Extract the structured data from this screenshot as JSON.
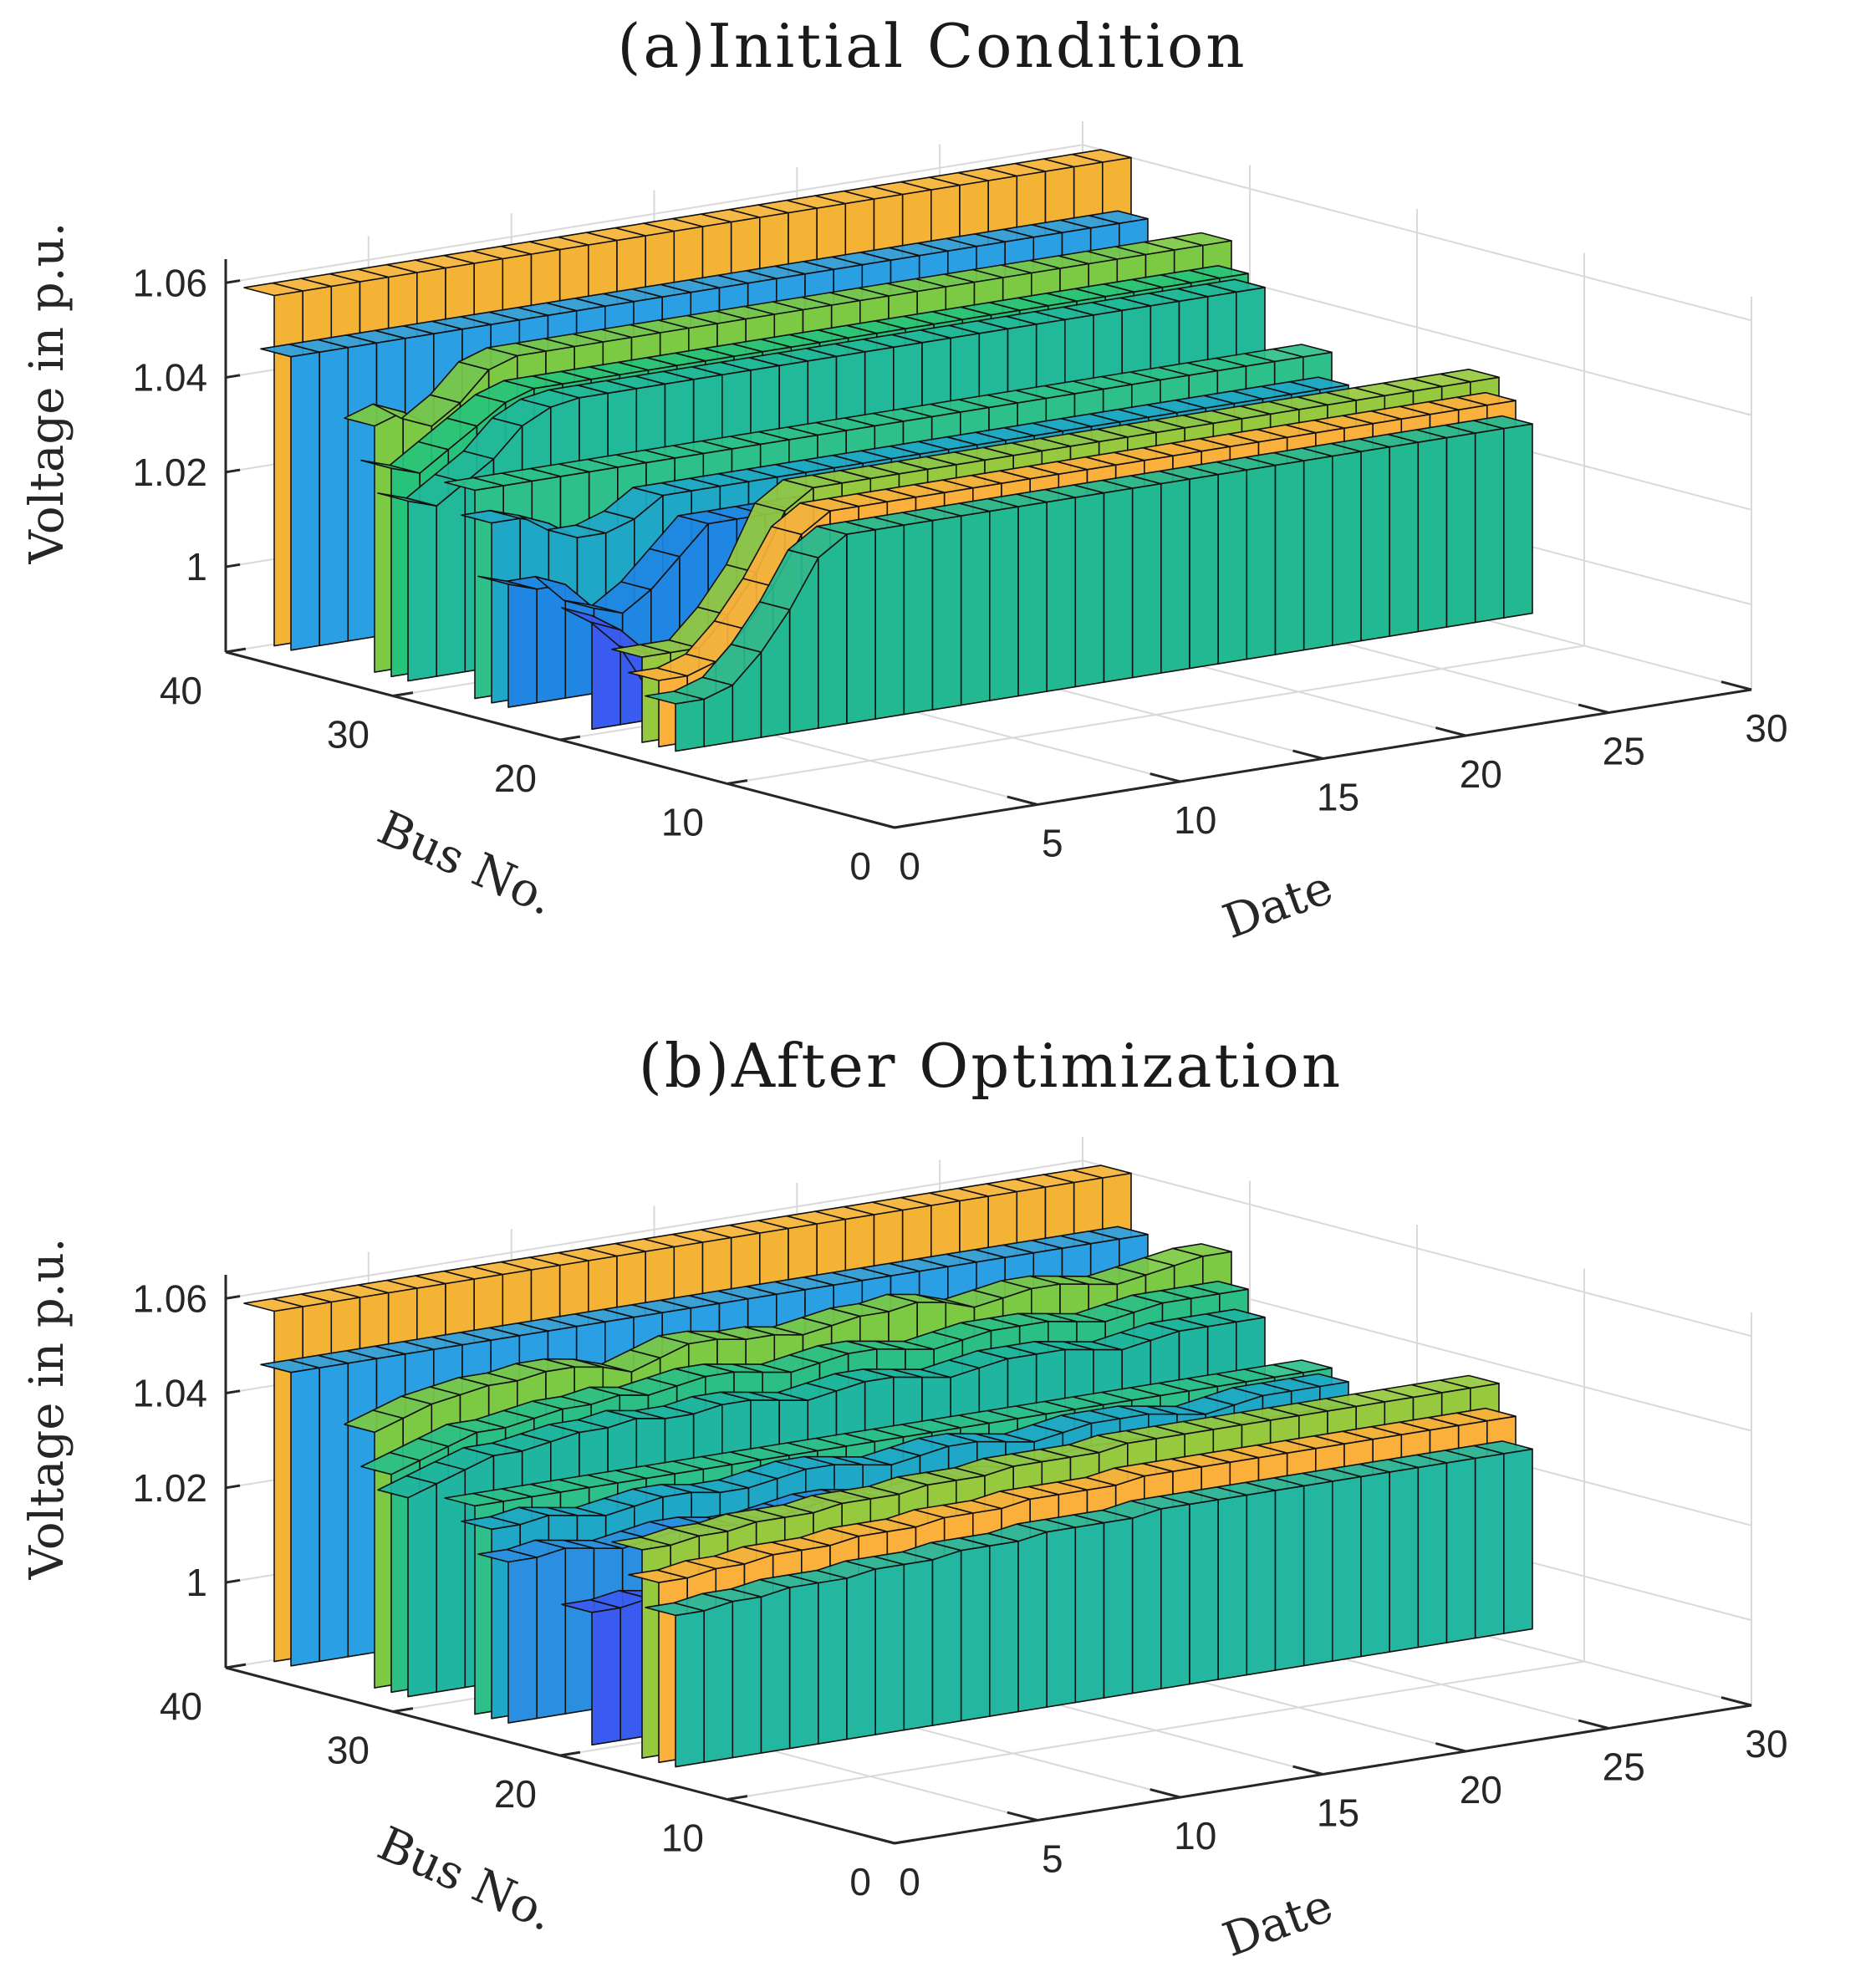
{
  "chart_data": [
    {
      "type": "surface3d",
      "title": "(a)Initial Condition",
      "xlabel": "Date",
      "ylabel": "Bus No.",
      "zlabel": "Voltage in p.u.",
      "xticks": [
        "0",
        "5",
        "10",
        "15",
        "20",
        "25",
        "30"
      ],
      "yticks": [
        "0",
        "10",
        "20",
        "30",
        "40"
      ],
      "zticks": [
        "1",
        "1.02",
        "1.04",
        "1.06"
      ],
      "xlim": [
        0,
        30
      ],
      "ylim": [
        0,
        40
      ],
      "zlim": [
        0.982,
        1.065
      ],
      "series": [
        {
          "name": "bus-38",
          "bus": 38,
          "values": [
            1.06,
            1.06,
            1.06,
            1.06,
            1.06,
            1.06,
            1.06,
            1.06,
            1.06,
            1.06,
            1.06,
            1.06,
            1.06,
            1.06,
            1.06,
            1.06,
            1.06,
            1.06,
            1.06,
            1.06,
            1.06,
            1.06,
            1.06,
            1.06,
            1.06,
            1.06,
            1.06,
            1.06,
            1.06,
            1.06
          ],
          "color": "#f5b335"
        },
        {
          "name": "bus-37",
          "bus": 37,
          "values": [
            1.048,
            1.048,
            1.048,
            1.048,
            1.048,
            1.048,
            1.048,
            1.048,
            1.048,
            1.048,
            1.048,
            1.048,
            1.048,
            1.048,
            1.048,
            1.048,
            1.048,
            1.048,
            1.048,
            1.048,
            1.048,
            1.048,
            1.048,
            1.048,
            1.048,
            1.048,
            1.048,
            1.048,
            1.048,
            1.048
          ],
          "color": "#2a9fe3"
        },
        {
          "name": "bus-32",
          "bus": 32,
          "values": [
            1.038,
            1.04,
            1.036,
            1.04,
            1.046,
            1.048,
            1.048,
            1.048,
            1.048,
            1.048,
            1.048,
            1.048,
            1.048,
            1.048,
            1.048,
            1.048,
            1.048,
            1.048,
            1.048,
            1.048,
            1.048,
            1.048,
            1.048,
            1.048,
            1.048,
            1.048,
            1.048,
            1.048,
            1.048,
            1.048
          ],
          "color": "#7cc943"
        },
        {
          "name": "bus-31",
          "bus": 31,
          "values": [
            1.03,
            1.028,
            1.032,
            1.036,
            1.04,
            1.042,
            1.042,
            1.042,
            1.042,
            1.042,
            1.042,
            1.042,
            1.042,
            1.042,
            1.042,
            1.042,
            1.042,
            1.042,
            1.042,
            1.042,
            1.042,
            1.042,
            1.042,
            1.042,
            1.042,
            1.042,
            1.042,
            1.042,
            1.042,
            1.042
          ],
          "color": "#27c37a"
        },
        {
          "name": "bus-30",
          "bus": 30,
          "values": [
            1.024,
            1.022,
            1.026,
            1.03,
            1.036,
            1.039,
            1.04,
            1.04,
            1.04,
            1.04,
            1.04,
            1.04,
            1.04,
            1.04,
            1.04,
            1.04,
            1.04,
            1.04,
            1.04,
            1.04,
            1.04,
            1.04,
            1.04,
            1.04,
            1.04,
            1.04,
            1.04,
            1.04,
            1.04,
            1.04
          ],
          "color": "#22b89a"
        },
        {
          "name": "bus-26",
          "bus": 26,
          "values": [
            1.03,
            1.03,
            1.03,
            1.03,
            1.03,
            1.03,
            1.03,
            1.03,
            1.03,
            1.03,
            1.03,
            1.03,
            1.03,
            1.03,
            1.03,
            1.03,
            1.03,
            1.03,
            1.03,
            1.03,
            1.03,
            1.03,
            1.03,
            1.03,
            1.03,
            1.03,
            1.03,
            1.03,
            1.03,
            1.03
          ],
          "color": "#2ec08a"
        },
        {
          "name": "bus-25",
          "bus": 25,
          "values": [
            1.024,
            1.024,
            1.022,
            1.018,
            1.018,
            1.02,
            1.024,
            1.024,
            1.024,
            1.024,
            1.024,
            1.024,
            1.024,
            1.024,
            1.024,
            1.024,
            1.024,
            1.024,
            1.024,
            1.024,
            1.024,
            1.024,
            1.024,
            1.024,
            1.024,
            1.024,
            1.024,
            1.024,
            1.024,
            1.024
          ],
          "color": "#1fa7c8"
        },
        {
          "name": "bus-24",
          "bus": 24,
          "values": [
            1.012,
            1.01,
            1.01,
            1.004,
            1.002,
            1.006,
            1.012,
            1.018,
            1.018,
            1.018,
            1.018,
            1.018,
            1.018,
            1.018,
            1.018,
            1.018,
            1.018,
            1.018,
            1.018,
            1.018,
            1.018,
            1.018,
            1.018,
            1.018,
            1.018,
            1.018,
            1.018,
            1.018,
            1.018,
            1.018
          ],
          "color": "#1f86e3"
        },
        {
          "name": "bus-19",
          "bus": 19,
          "values": [
            1.01,
            1.006,
            1.0,
            0.99,
            0.986,
            0.99,
            1.0,
            1.008,
            1.01,
            1.01,
            1.01,
            1.01,
            1.01,
            1.01,
            1.01,
            1.01,
            1.01,
            1.01,
            1.01,
            1.01,
            1.01,
            1.01,
            1.01,
            1.01,
            1.01,
            1.01,
            1.01,
            1.01,
            1.01,
            1.01
          ],
          "color": "#3a5bf0"
        },
        {
          "name": "bus-16",
          "bus": 16,
          "values": [
            1.004,
            1.004,
            1.004,
            1.01,
            1.018,
            1.03,
            1.034,
            1.034,
            1.034,
            1.034,
            1.034,
            1.034,
            1.034,
            1.034,
            1.034,
            1.034,
            1.034,
            1.034,
            1.034,
            1.034,
            1.034,
            1.034,
            1.034,
            1.034,
            1.034,
            1.034,
            1.034,
            1.034,
            1.034,
            1.034
          ],
          "color": "#96c93e"
        },
        {
          "name": "bus-15",
          "bus": 15,
          "values": [
            1.0,
            1.0,
            1.002,
            1.008,
            1.016,
            1.026,
            1.03,
            1.03,
            1.03,
            1.03,
            1.03,
            1.03,
            1.03,
            1.03,
            1.03,
            1.03,
            1.03,
            1.03,
            1.03,
            1.03,
            1.03,
            1.03,
            1.03,
            1.03,
            1.03,
            1.03,
            1.03,
            1.03,
            1.03,
            1.03
          ],
          "color": "#fbb03b"
        },
        {
          "name": "bus-14",
          "bus": 14,
          "values": [
            0.996,
            0.996,
            0.998,
            1.004,
            1.012,
            1.022,
            1.026,
            1.026,
            1.026,
            1.026,
            1.026,
            1.026,
            1.026,
            1.026,
            1.026,
            1.026,
            1.026,
            1.026,
            1.026,
            1.026,
            1.026,
            1.026,
            1.026,
            1.026,
            1.026,
            1.026,
            1.026,
            1.026,
            1.026,
            1.026
          ],
          "color": "#22b892"
        }
      ]
    },
    {
      "type": "surface3d",
      "title": "(b)After Optimization",
      "xlabel": "Date",
      "ylabel": "Bus No.",
      "zlabel": "Voltage in p.u.",
      "xticks": [
        "0",
        "5",
        "10",
        "15",
        "20",
        "25",
        "30"
      ],
      "yticks": [
        "0",
        "10",
        "20",
        "30",
        "40"
      ],
      "zticks": [
        "1",
        "1.02",
        "1.04",
        "1.06"
      ],
      "xlim": [
        0,
        30
      ],
      "ylim": [
        0,
        40
      ],
      "zlim": [
        0.982,
        1.065
      ],
      "series": [
        {
          "name": "bus-38",
          "bus": 38,
          "values": [
            1.06,
            1.06,
            1.06,
            1.06,
            1.06,
            1.06,
            1.06,
            1.06,
            1.06,
            1.06,
            1.06,
            1.06,
            1.06,
            1.06,
            1.06,
            1.06,
            1.06,
            1.06,
            1.06,
            1.06,
            1.06,
            1.06,
            1.06,
            1.06,
            1.06,
            1.06,
            1.06,
            1.06,
            1.06,
            1.06
          ],
          "color": "#f5b335"
        },
        {
          "name": "bus-37",
          "bus": 37,
          "values": [
            1.048,
            1.048,
            1.048,
            1.048,
            1.048,
            1.048,
            1.048,
            1.048,
            1.048,
            1.048,
            1.048,
            1.048,
            1.048,
            1.048,
            1.048,
            1.048,
            1.048,
            1.048,
            1.048,
            1.048,
            1.048,
            1.048,
            1.048,
            1.048,
            1.048,
            1.048,
            1.048,
            1.048,
            1.048,
            1.048
          ],
          "color": "#2a9fe3"
        },
        {
          "name": "bus-32",
          "bus": 32,
          "values": [
            1.04,
            1.042,
            1.044,
            1.045,
            1.046,
            1.046,
            1.047,
            1.047,
            1.046,
            1.044,
            1.046,
            1.048,
            1.048,
            1.047,
            1.047,
            1.046,
            1.047,
            1.048,
            1.048,
            1.049,
            1.048,
            1.046,
            1.047,
            1.048,
            1.048,
            1.047,
            1.046,
            1.047,
            1.048,
            1.049
          ],
          "color": "#7cc943"
        },
        {
          "name": "bus-31",
          "bus": 31,
          "values": [
            1.032,
            1.034,
            1.036,
            1.038,
            1.038,
            1.039,
            1.04,
            1.04,
            1.041,
            1.04,
            1.041,
            1.042,
            1.042,
            1.041,
            1.04,
            1.041,
            1.042,
            1.042,
            1.041,
            1.04,
            1.041,
            1.042,
            1.042,
            1.042,
            1.041,
            1.04,
            1.041,
            1.042,
            1.042,
            1.042
          ],
          "color": "#2bbf86"
        },
        {
          "name": "bus-30",
          "bus": 30,
          "values": [
            1.028,
            1.03,
            1.032,
            1.034,
            1.034,
            1.035,
            1.036,
            1.036,
            1.037,
            1.036,
            1.036,
            1.037,
            1.037,
            1.036,
            1.035,
            1.036,
            1.037,
            1.037,
            1.036,
            1.035,
            1.036,
            1.037,
            1.037,
            1.037,
            1.036,
            1.035,
            1.036,
            1.037,
            1.037,
            1.037
          ],
          "color": "#1fb5a0"
        },
        {
          "name": "bus-26",
          "bus": 26,
          "values": [
            1.03,
            1.03,
            1.03,
            1.03,
            1.03,
            1.03,
            1.03,
            1.03,
            1.03,
            1.03,
            1.03,
            1.03,
            1.03,
            1.03,
            1.03,
            1.03,
            1.03,
            1.03,
            1.03,
            1.03,
            1.03,
            1.03,
            1.03,
            1.03,
            1.03,
            1.03,
            1.03,
            1.03,
            1.03,
            1.03
          ],
          "color": "#2ec08a"
        },
        {
          "name": "bus-25",
          "bus": 25,
          "values": [
            1.026,
            1.026,
            1.027,
            1.026,
            1.025,
            1.026,
            1.027,
            1.027,
            1.026,
            1.026,
            1.027,
            1.028,
            1.028,
            1.027,
            1.026,
            1.027,
            1.028,
            1.028,
            1.027,
            1.026,
            1.027,
            1.028,
            1.028,
            1.028,
            1.027,
            1.026,
            1.027,
            1.028,
            1.028,
            1.028
          ],
          "color": "#1fa7c8"
        },
        {
          "name": "bus-24",
          "bus": 24,
          "values": [
            1.02,
            1.02,
            1.021,
            1.02,
            1.019,
            1.02,
            1.021,
            1.021,
            1.02,
            1.02,
            1.021,
            1.022,
            1.022,
            1.021,
            1.02,
            1.021,
            1.022,
            1.022,
            1.021,
            1.02,
            1.021,
            1.022,
            1.022,
            1.022,
            1.021,
            1.02,
            1.021,
            1.022,
            1.022,
            1.022
          ],
          "color": "#2a8fe0"
        },
        {
          "name": "bus-19",
          "bus": 19,
          "values": [
            1.014,
            1.014,
            1.015,
            1.014,
            1.013,
            1.014,
            1.015,
            1.015,
            1.014,
            1.014,
            1.015,
            1.016,
            1.016,
            1.015,
            1.014,
            1.015,
            1.016,
            1.016,
            1.015,
            1.014,
            1.015,
            1.016,
            1.016,
            1.016,
            1.015,
            1.014,
            1.015,
            1.016,
            1.016,
            1.016
          ],
          "color": "#3a5bf0"
        },
        {
          "name": "bus-16",
          "bus": 16,
          "values": [
            1.03,
            1.03,
            1.031,
            1.031,
            1.032,
            1.032,
            1.032,
            1.033,
            1.033,
            1.033,
            1.034,
            1.034,
            1.034,
            1.035,
            1.035,
            1.035,
            1.035,
            1.036,
            1.036,
            1.036,
            1.036,
            1.036,
            1.036,
            1.036,
            1.036,
            1.036,
            1.036,
            1.036,
            1.036,
            1.036
          ],
          "color": "#96c93e"
        },
        {
          "name": "bus-15",
          "bus": 15,
          "values": [
            1.024,
            1.024,
            1.025,
            1.025,
            1.026,
            1.026,
            1.026,
            1.027,
            1.027,
            1.027,
            1.028,
            1.028,
            1.028,
            1.029,
            1.029,
            1.029,
            1.029,
            1.03,
            1.03,
            1.03,
            1.03,
            1.03,
            1.03,
            1.03,
            1.03,
            1.03,
            1.03,
            1.03,
            1.03,
            1.03
          ],
          "color": "#fbb03b"
        },
        {
          "name": "bus-14",
          "bus": 14,
          "values": [
            1.018,
            1.018,
            1.019,
            1.019,
            1.02,
            1.02,
            1.02,
            1.021,
            1.021,
            1.021,
            1.022,
            1.022,
            1.022,
            1.023,
            1.023,
            1.023,
            1.023,
            1.024,
            1.024,
            1.024,
            1.024,
            1.024,
            1.024,
            1.024,
            1.024,
            1.024,
            1.024,
            1.024,
            1.024,
            1.024
          ],
          "color": "#23b6a0"
        }
      ]
    }
  ]
}
